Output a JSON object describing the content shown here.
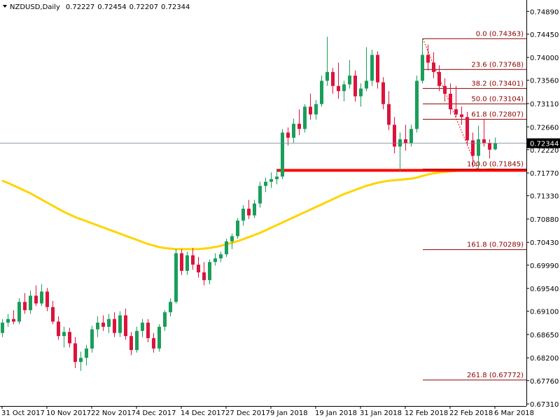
{
  "chart_data": {
    "type": "candlestick",
    "symbol": "NZDUSD,Daily",
    "categories": [
      "31 Oct 2017",
      null,
      null,
      null,
      null,
      null,
      null,
      null,
      "10 Nov 2017",
      null,
      null,
      null,
      null,
      null,
      null,
      null,
      "22 Nov 2017",
      null,
      null,
      null,
      null,
      null,
      null,
      null,
      "4 Dec 2017",
      null,
      null,
      null,
      null,
      null,
      null,
      null,
      "14 Dec 2017",
      null,
      null,
      null,
      null,
      null,
      null,
      null,
      "27 Dec 2017",
      null,
      null,
      null,
      null,
      null,
      null,
      null,
      "9 Jan 2018",
      null,
      null,
      null,
      null,
      null,
      null,
      null,
      "19 Jan 2018",
      null,
      null,
      null,
      null,
      null,
      null,
      null,
      "31 Jan 2018",
      null,
      null,
      null,
      null,
      null,
      null,
      null,
      "12 Feb 2018",
      null,
      null,
      null,
      null,
      null,
      null,
      null,
      "22 Feb 2018",
      null,
      null,
      null,
      null,
      null,
      null,
      null,
      "6 Mar 2018"
    ],
    "ohlc": [
      [
        0.6868,
        0.6895,
        0.686,
        0.6888
      ],
      [
        0.6888,
        0.6905,
        0.688,
        0.6895
      ],
      [
        0.6895,
        0.6912,
        0.6885,
        0.689
      ],
      [
        0.689,
        0.6935,
        0.6885,
        0.6928
      ],
      [
        0.6928,
        0.6945,
        0.6905,
        0.6912
      ],
      [
        0.6912,
        0.695,
        0.6905,
        0.694
      ],
      [
        0.694,
        0.696,
        0.692,
        0.6925
      ],
      [
        0.6925,
        0.6962,
        0.692,
        0.6948
      ],
      [
        0.6948,
        0.6955,
        0.691,
        0.6918
      ],
      [
        0.6918,
        0.693,
        0.6885,
        0.689
      ],
      [
        0.689,
        0.69,
        0.6855,
        0.6862
      ],
      [
        0.6862,
        0.688,
        0.684,
        0.687
      ],
      [
        0.687,
        0.6878,
        0.684,
        0.6848
      ],
      [
        0.6848,
        0.686,
        0.68,
        0.6812
      ],
      [
        0.6812,
        0.6832,
        0.6795,
        0.682
      ],
      [
        0.682,
        0.6845,
        0.6805,
        0.6838
      ],
      [
        0.6838,
        0.6882,
        0.683,
        0.6875
      ],
      [
        0.6875,
        0.69,
        0.686,
        0.6888
      ],
      [
        0.6888,
        0.6902,
        0.6872,
        0.688
      ],
      [
        0.688,
        0.6905,
        0.6868,
        0.6895
      ],
      [
        0.6895,
        0.6908,
        0.686,
        0.6868
      ],
      [
        0.6868,
        0.691,
        0.686,
        0.6902
      ],
      [
        0.6902,
        0.6915,
        0.6855,
        0.6862
      ],
      [
        0.6862,
        0.687,
        0.6825,
        0.6835
      ],
      [
        0.6835,
        0.688,
        0.683,
        0.6872
      ],
      [
        0.6872,
        0.6895,
        0.686,
        0.6888
      ],
      [
        0.6888,
        0.6895,
        0.685,
        0.6858
      ],
      [
        0.6858,
        0.6868,
        0.683,
        0.6838
      ],
      [
        0.6838,
        0.6885,
        0.6832,
        0.688
      ],
      [
        0.688,
        0.6912,
        0.6872,
        0.6908
      ],
      [
        0.6908,
        0.6935,
        0.69,
        0.6928
      ],
      [
        0.6928,
        0.703,
        0.6925,
        0.7022
      ],
      [
        0.7022,
        0.703,
        0.698,
        0.6988
      ],
      [
        0.6988,
        0.7025,
        0.698,
        0.7018
      ],
      [
        0.7018,
        0.7032,
        0.699,
        0.7
      ],
      [
        0.7,
        0.7015,
        0.6975,
        0.6985
      ],
      [
        0.6985,
        0.7005,
        0.696,
        0.697
      ],
      [
        0.697,
        0.701,
        0.6962,
        0.7005
      ],
      [
        0.7005,
        0.7022,
        0.6998,
        0.7012
      ],
      [
        0.7012,
        0.7025,
        0.7005,
        0.702
      ],
      [
        0.702,
        0.705,
        0.7015,
        0.7045
      ],
      [
        0.7045,
        0.706,
        0.703,
        0.7055
      ],
      [
        0.7055,
        0.709,
        0.705,
        0.7085
      ],
      [
        0.7085,
        0.7115,
        0.7075,
        0.7108
      ],
      [
        0.7108,
        0.7125,
        0.7088,
        0.7095
      ],
      [
        0.7095,
        0.7125,
        0.709,
        0.7118
      ],
      [
        0.7118,
        0.716,
        0.711,
        0.7152
      ],
      [
        0.7152,
        0.7168,
        0.714,
        0.716
      ],
      [
        0.716,
        0.7178,
        0.7148,
        0.7165
      ],
      [
        0.7165,
        0.7185,
        0.7155,
        0.717
      ],
      [
        0.717,
        0.7262,
        0.7165,
        0.7255
      ],
      [
        0.7255,
        0.7265,
        0.723,
        0.7245
      ],
      [
        0.7245,
        0.7282,
        0.7235,
        0.7272
      ],
      [
        0.7272,
        0.73,
        0.725,
        0.7262
      ],
      [
        0.7262,
        0.731,
        0.7255,
        0.7305
      ],
      [
        0.7305,
        0.733,
        0.728,
        0.729
      ],
      [
        0.729,
        0.7318,
        0.728,
        0.731
      ],
      [
        0.731,
        0.7365,
        0.7305,
        0.7355
      ],
      [
        0.7355,
        0.744,
        0.7345,
        0.7372
      ],
      [
        0.7372,
        0.738,
        0.733,
        0.7345
      ],
      [
        0.7345,
        0.739,
        0.732,
        0.7335
      ],
      [
        0.7335,
        0.7355,
        0.7315,
        0.7348
      ],
      [
        0.7348,
        0.7395,
        0.734,
        0.7365
      ],
      [
        0.7365,
        0.7375,
        0.7315,
        0.7325
      ],
      [
        0.7325,
        0.735,
        0.7305,
        0.734
      ],
      [
        0.734,
        0.742,
        0.7335,
        0.7355
      ],
      [
        0.7355,
        0.7415,
        0.7345,
        0.7405
      ],
      [
        0.7405,
        0.7412,
        0.734,
        0.7352
      ],
      [
        0.7352,
        0.7362,
        0.73,
        0.731
      ],
      [
        0.731,
        0.7335,
        0.726,
        0.727
      ],
      [
        0.727,
        0.7285,
        0.7215,
        0.7228
      ],
      [
        0.7228,
        0.7255,
        0.718,
        0.7242
      ],
      [
        0.7242,
        0.727,
        0.722,
        0.7235
      ],
      [
        0.7235,
        0.727,
        0.7228,
        0.7262
      ],
      [
        0.7262,
        0.7365,
        0.7255,
        0.7355
      ],
      [
        0.7355,
        0.7436,
        0.735,
        0.7405
      ],
      [
        0.7405,
        0.7425,
        0.7375,
        0.739
      ],
      [
        0.739,
        0.741,
        0.736,
        0.7372
      ],
      [
        0.7372,
        0.7385,
        0.7335,
        0.7345
      ],
      [
        0.7345,
        0.736,
        0.7315,
        0.733
      ],
      [
        0.733,
        0.735,
        0.729,
        0.73
      ],
      [
        0.73,
        0.7345,
        0.7285,
        0.729
      ],
      [
        0.729,
        0.7305,
        0.727,
        0.7285
      ],
      [
        0.7285,
        0.7295,
        0.723,
        0.724
      ],
      [
        0.724,
        0.7255,
        0.7188,
        0.721
      ],
      [
        0.721,
        0.7268,
        0.7185,
        0.7242
      ],
      [
        0.7242,
        0.728,
        0.7228,
        0.7235
      ],
      [
        0.7235,
        0.7242,
        0.7205,
        0.7222
      ],
      [
        0.72227,
        0.72454,
        0.72207,
        0.72344
      ]
    ],
    "up_color": "#1a9e5a",
    "down_color": "#dc143c",
    "moving_average": {
      "color": "#ffd400",
      "values": [
        0.7162,
        0.7158,
        0.7153,
        0.7148,
        0.7143,
        0.7138,
        0.7132,
        0.7126,
        0.712,
        0.7114,
        0.7108,
        0.7102,
        0.7097,
        0.7092,
        0.7088,
        0.7084,
        0.708,
        0.7076,
        0.7072,
        0.7068,
        0.7064,
        0.706,
        0.7056,
        0.7052,
        0.7048,
        0.7044,
        0.704,
        0.7037,
        0.7034,
        0.7032,
        0.7031,
        0.703,
        0.703,
        0.703,
        0.703,
        0.703,
        0.7031,
        0.7032,
        0.7034,
        0.7036,
        0.7039,
        0.7042,
        0.7045,
        0.7049,
        0.7053,
        0.7057,
        0.7061,
        0.7066,
        0.7071,
        0.7076,
        0.7081,
        0.7086,
        0.7091,
        0.7096,
        0.7101,
        0.7106,
        0.7111,
        0.7116,
        0.7121,
        0.7126,
        0.7131,
        0.7136,
        0.714,
        0.7144,
        0.7148,
        0.7152,
        0.7155,
        0.7158,
        0.716,
        0.7162,
        0.7163,
        0.7164,
        0.7165,
        0.7166,
        0.7168,
        0.7171,
        0.7174,
        0.7176,
        0.7178,
        0.7179,
        0.718,
        0.7181,
        0.7182,
        0.7182,
        0.7183,
        0.7183,
        0.7183,
        0.7184,
        0.7184
      ]
    },
    "horizontal_line": {
      "value": 0.7182,
      "color": "#ff0000"
    },
    "fibonacci": {
      "color": "#8b0000",
      "levels": [
        {
          "value": 0.74363,
          "label": "0.0 (0.74363)"
        },
        {
          "value": 0.73768,
          "label": "23.6 (0.73768)"
        },
        {
          "value": 0.73401,
          "label": "38.2 (0.73401)"
        },
        {
          "value": 0.73104,
          "label": "50.0 (0.73104)"
        },
        {
          "value": 0.72807,
          "label": "61.8 (0.72807)"
        },
        {
          "value": 0.71845,
          "label": "100.0 (0.71845)"
        },
        {
          "value": 0.70289,
          "label": "161.8 (0.70289)"
        },
        {
          "value": 0.67772,
          "label": "261.8 (0.67772)"
        }
      ]
    },
    "ylim": [
      0.6727,
      0.7511
    ],
    "yticks": [
      {
        "value": 0.7489,
        "label": "0.74890"
      },
      {
        "value": 0.7445,
        "label": "0.74450"
      },
      {
        "value": 0.74,
        "label": "0.74000"
      },
      {
        "value": 0.7356,
        "label": "0.73560"
      },
      {
        "value": 0.7311,
        "label": "0.73110"
      },
      {
        "value": 0.7266,
        "label": "0.72660"
      },
      {
        "value": 0.7222,
        "label": "0.72220"
      },
      {
        "value": 0.7177,
        "label": "0.71770"
      },
      {
        "value": 0.7133,
        "label": "0.71330"
      },
      {
        "value": 0.7088,
        "label": "0.70880"
      },
      {
        "value": 0.7043,
        "label": "0.70430"
      },
      {
        "value": 0.6999,
        "label": "0.69990"
      },
      {
        "value": 0.6954,
        "label": "0.69540"
      },
      {
        "value": 0.691,
        "label": "0.69100"
      },
      {
        "value": 0.6865,
        "label": "0.68650"
      },
      {
        "value": 0.682,
        "label": "0.68200"
      },
      {
        "value": 0.6776,
        "label": "0.67760"
      },
      {
        "value": 0.6731,
        "label": "0.67310"
      }
    ]
  }
}
